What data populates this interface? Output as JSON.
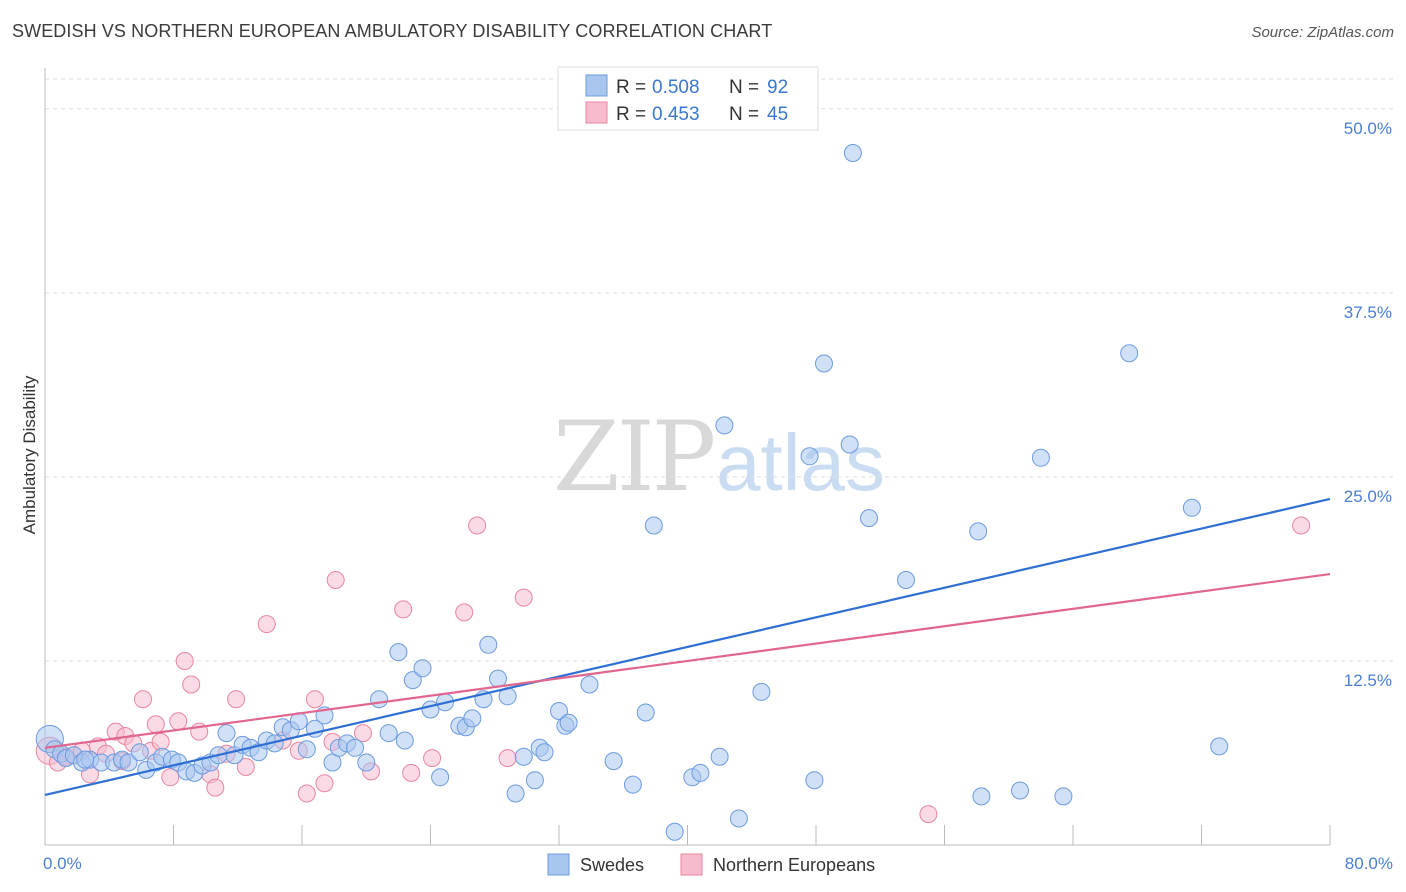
{
  "title": "SWEDISH VS NORTHERN EUROPEAN AMBULATORY DISABILITY CORRELATION CHART",
  "source": "Source: ZipAtlas.com",
  "watermark": {
    "zip": "ZIP",
    "atlas": "atlas"
  },
  "legend": {
    "r_label": "R = ",
    "n_label": "N = ",
    "rows": [
      {
        "r": "0.508",
        "n": "92"
      },
      {
        "r": "0.453",
        "n": "45"
      }
    ]
  },
  "colors": {
    "blue_fill": "#a9c7ee",
    "blue_stroke": "#6c9be0",
    "blue_line": "#2e6fd3",
    "pink_fill": "#f6bccd",
    "pink_stroke": "#e9869f",
    "pink_line": "#e0658f",
    "grid": "#dddddd",
    "tick_label": "#4a7fd0"
  },
  "chart_data": {
    "type": "scatter",
    "title": "SWEDISH VS NORTHERN EUROPEAN AMBULATORY DISABILITY CORRELATION CHART",
    "xlabel": "",
    "ylabel": "Ambulatory Disability",
    "xlim": [
      0,
      80
    ],
    "ylim": [
      0,
      52.5
    ],
    "x_tick_labels": [
      "0.0%",
      "80.0%"
    ],
    "y_ticks": [
      12.5,
      25.0,
      37.5,
      50.0
    ],
    "y_tick_labels": [
      "12.5%",
      "25.0%",
      "37.5%",
      "50.0%"
    ],
    "grid": "horizontal dashed",
    "legend_position": "top-center",
    "series": [
      {
        "name": "Swedes",
        "color": "#a9c7ee",
        "points": [
          [
            0.3,
            7.2,
            1.6
          ],
          [
            0.6,
            6.5,
            1
          ],
          [
            1.0,
            6.2,
            1
          ],
          [
            1.3,
            5.9,
            1
          ],
          [
            1.8,
            6.1,
            1
          ],
          [
            2.3,
            5.6,
            1
          ],
          [
            2.8,
            5.8,
            1
          ],
          [
            3.5,
            5.6,
            1
          ],
          [
            4.3,
            5.6,
            1
          ],
          [
            4.8,
            5.8,
            1
          ],
          [
            5.2,
            5.6,
            1
          ],
          [
            5.9,
            6.3,
            1
          ],
          [
            6.3,
            5.1,
            1
          ],
          [
            6.9,
            5.6,
            1
          ],
          [
            7.3,
            6.0,
            1
          ],
          [
            7.9,
            5.8,
            1
          ],
          [
            8.3,
            5.6,
            1
          ],
          [
            8.8,
            5.0,
            1
          ],
          [
            9.3,
            4.9,
            1
          ],
          [
            9.8,
            5.4,
            1
          ],
          [
            10.3,
            5.6,
            1
          ],
          [
            10.8,
            6.1,
            1
          ],
          [
            11.3,
            7.6,
            1
          ],
          [
            11.8,
            6.1,
            1
          ],
          [
            12.3,
            6.8,
            1
          ],
          [
            12.8,
            6.6,
            1
          ],
          [
            13.3,
            6.3,
            1
          ],
          [
            13.8,
            7.1,
            1
          ],
          [
            14.3,
            6.9,
            1
          ],
          [
            14.8,
            8.0,
            1
          ],
          [
            15.3,
            7.8,
            1
          ],
          [
            15.8,
            8.4,
            1
          ],
          [
            16.3,
            6.5,
            1
          ],
          [
            16.8,
            7.9,
            1
          ],
          [
            17.4,
            8.8,
            1
          ],
          [
            17.9,
            5.6,
            1
          ],
          [
            18.3,
            6.6,
            1
          ],
          [
            18.8,
            6.9,
            1
          ],
          [
            19.3,
            6.6,
            1
          ],
          [
            20.0,
            5.6,
            1
          ],
          [
            20.8,
            9.9,
            1
          ],
          [
            21.4,
            7.6,
            1
          ],
          [
            22.0,
            13.1,
            1
          ],
          [
            22.4,
            7.1,
            1
          ],
          [
            22.9,
            11.2,
            1
          ],
          [
            23.5,
            12.0,
            1
          ],
          [
            24.0,
            9.2,
            1
          ],
          [
            24.6,
            4.6,
            1
          ],
          [
            24.9,
            9.7,
            1
          ],
          [
            25.8,
            8.1,
            1
          ],
          [
            26.2,
            8.0,
            1
          ],
          [
            26.6,
            8.6,
            1
          ],
          [
            27.3,
            9.9,
            1
          ],
          [
            27.6,
            13.6,
            1
          ],
          [
            28.2,
            11.3,
            1
          ],
          [
            28.8,
            10.1,
            1
          ],
          [
            29.3,
            3.5,
            1
          ],
          [
            29.8,
            6.0,
            1
          ],
          [
            30.5,
            4.4,
            1
          ],
          [
            30.8,
            6.6,
            1
          ],
          [
            31.1,
            6.3,
            1
          ],
          [
            32.0,
            9.1,
            1
          ],
          [
            32.4,
            8.1,
            1
          ],
          [
            32.6,
            8.3,
            1
          ],
          [
            33.9,
            10.9,
            1
          ],
          [
            35.4,
            5.7,
            1
          ],
          [
            36.6,
            4.1,
            1
          ],
          [
            37.4,
            9.0,
            1
          ],
          [
            37.9,
            21.7,
            1
          ],
          [
            39.2,
            0.9,
            1
          ],
          [
            40.3,
            4.6,
            1
          ],
          [
            40.8,
            4.9,
            1
          ],
          [
            42.0,
            6.0,
            1
          ],
          [
            42.3,
            28.5,
            1
          ],
          [
            43.2,
            1.8,
            1
          ],
          [
            44.6,
            10.4,
            1
          ],
          [
            47.6,
            26.4,
            1
          ],
          [
            47.9,
            4.4,
            1
          ],
          [
            48.5,
            32.7,
            1
          ],
          [
            50.1,
            27.2,
            1
          ],
          [
            50.3,
            47.0,
            1
          ],
          [
            51.3,
            22.2,
            1
          ],
          [
            53.6,
            18.0,
            1
          ],
          [
            58.1,
            21.3,
            1
          ],
          [
            58.3,
            3.3,
            1
          ],
          [
            60.7,
            3.7,
            1
          ],
          [
            62.0,
            26.3,
            1
          ],
          [
            63.4,
            3.3,
            1
          ],
          [
            67.5,
            33.4,
            1
          ],
          [
            71.4,
            22.9,
            1
          ],
          [
            73.1,
            6.7,
            1
          ],
          [
            2.5,
            5.8,
            1
          ]
        ]
      },
      {
        "name": "Northern Europeans",
        "color": "#f6bccd",
        "points": [
          [
            0.3,
            6.4,
            1.6
          ],
          [
            0.8,
            5.6,
            1
          ],
          [
            1.3,
            6.0,
            1
          ],
          [
            1.8,
            6.1,
            1
          ],
          [
            2.3,
            6.4,
            1
          ],
          [
            2.8,
            4.8,
            1
          ],
          [
            3.3,
            6.7,
            1
          ],
          [
            3.8,
            6.2,
            1
          ],
          [
            4.4,
            7.7,
            1
          ],
          [
            4.8,
            5.7,
            1
          ],
          [
            5.0,
            7.4,
            1
          ],
          [
            5.5,
            6.9,
            1
          ],
          [
            6.1,
            9.9,
            1
          ],
          [
            6.6,
            6.4,
            1
          ],
          [
            6.9,
            8.2,
            1
          ],
          [
            7.2,
            7.0,
            1
          ],
          [
            7.8,
            4.6,
            1
          ],
          [
            8.3,
            8.4,
            1
          ],
          [
            8.7,
            12.5,
            1
          ],
          [
            9.1,
            10.9,
            1
          ],
          [
            9.6,
            7.7,
            1
          ],
          [
            10.3,
            4.8,
            1
          ],
          [
            10.6,
            3.9,
            1
          ],
          [
            11.3,
            6.2,
            1
          ],
          [
            11.9,
            9.9,
            1
          ],
          [
            12.5,
            5.3,
            1
          ],
          [
            13.8,
            15.0,
            1
          ],
          [
            14.8,
            7.1,
            1
          ],
          [
            15.8,
            6.4,
            1
          ],
          [
            16.3,
            3.5,
            1
          ],
          [
            16.8,
            9.9,
            1
          ],
          [
            17.4,
            4.2,
            1
          ],
          [
            17.9,
            7.0,
            1
          ],
          [
            18.1,
            18.0,
            1
          ],
          [
            19.8,
            7.6,
            1
          ],
          [
            20.3,
            5.0,
            1
          ],
          [
            22.3,
            16.0,
            1
          ],
          [
            22.8,
            4.9,
            1
          ],
          [
            24.1,
            5.9,
            1
          ],
          [
            26.1,
            15.8,
            1
          ],
          [
            26.9,
            21.7,
            1
          ],
          [
            28.8,
            5.9,
            1
          ],
          [
            29.8,
            16.8,
            1
          ],
          [
            55.0,
            2.1,
            1
          ],
          [
            78.2,
            21.7,
            1
          ]
        ]
      }
    ],
    "trendlines": [
      {
        "series": "Swedes",
        "x": [
          0,
          80
        ],
        "y": [
          3.4,
          23.5
        ]
      },
      {
        "series": "Northern Europeans",
        "x": [
          0,
          80
        ],
        "y": [
          6.6,
          18.4
        ]
      }
    ]
  }
}
